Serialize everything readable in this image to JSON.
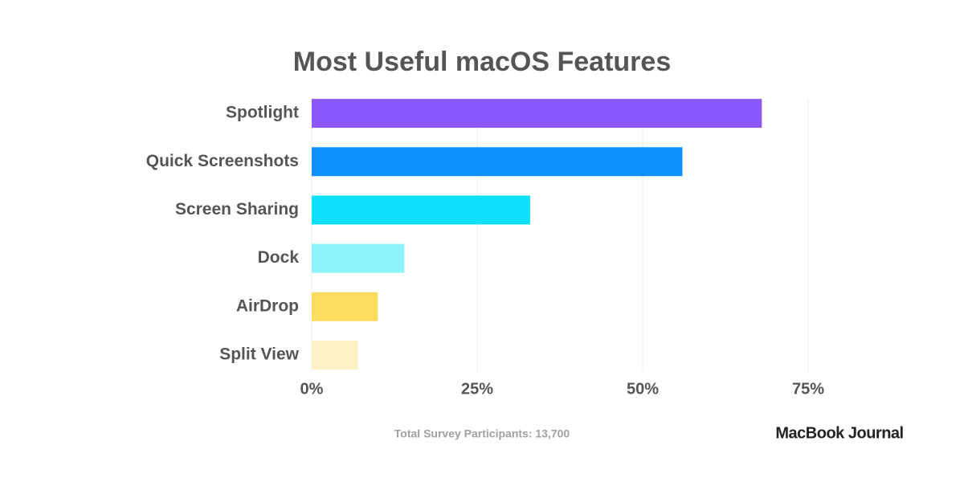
{
  "chart_data": {
    "type": "bar",
    "orientation": "horizontal",
    "title": "Most Useful macOS Features",
    "categories": [
      "Spotlight",
      "Quick Screenshots",
      "Screen Sharing",
      "Dock",
      "AirDrop",
      "Split View"
    ],
    "values": [
      68,
      56,
      33,
      14,
      10,
      7
    ],
    "colors": [
      "#8c58fb",
      "#0f8ffb",
      "#0fe0fb",
      "#8df2fb",
      "#fddd5f",
      "#fef1c6"
    ],
    "xlim": [
      0,
      75
    ],
    "xticks": [
      {
        "value": 0,
        "label": "0%"
      },
      {
        "value": 25,
        "label": "25%"
      },
      {
        "value": 50,
        "label": "50%"
      },
      {
        "value": 75,
        "label": "75%"
      }
    ],
    "grid": true,
    "footnote": "Total Survey Participants: 13,700",
    "brand": "MacBook Journal"
  }
}
